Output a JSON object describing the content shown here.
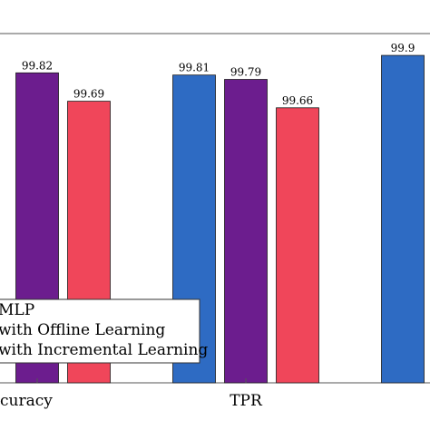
{
  "chart_data": {
    "type": "bar",
    "categories": [
      "Accuracy",
      "TPR",
      ""
    ],
    "series": [
      {
        "name": "MLP",
        "color": "#2e6bc3",
        "values": [
          null,
          99.81,
          99.9
        ]
      },
      {
        "name": "with Offline Learning",
        "color": "#6c1d8e",
        "values": [
          99.82,
          99.79,
          null
        ]
      },
      {
        "name": "with Incremental Learning",
        "color": "#f0465a",
        "values": [
          99.69,
          99.66,
          null
        ]
      }
    ],
    "tick_labels": [
      "curacy",
      "TPR"
    ],
    "data_labels": [
      [
        null,
        "99.81",
        "99.9"
      ],
      [
        "99.82",
        "99.79",
        null
      ],
      [
        "99.69",
        "99.66",
        null
      ]
    ],
    "ylim": [
      98.4,
      100.0
    ],
    "grid": false,
    "legend_position": "lower-left",
    "title": "",
    "xlabel": "",
    "ylabel": ""
  }
}
